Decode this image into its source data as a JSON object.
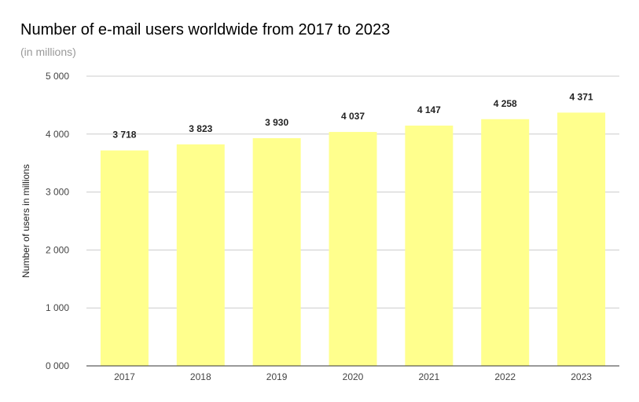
{
  "chart_data": {
    "type": "bar",
    "title": "Number of e-mail users worldwide from 2017 to 2023",
    "subtitle": "(in millions)",
    "xlabel": "",
    "ylabel": "Number of users in millions",
    "categories": [
      "2017",
      "2018",
      "2019",
      "2020",
      "2021",
      "2022",
      "2023"
    ],
    "values": [
      3718,
      3823,
      3930,
      4037,
      4147,
      4258,
      4371
    ],
    "data_labels": [
      "3 718",
      "3 823",
      "3 930",
      "4 037",
      "4 147",
      "4 258",
      "4 371"
    ],
    "ylim": [
      0,
      5000
    ],
    "yticks": [
      0,
      1000,
      2000,
      3000,
      4000,
      5000
    ],
    "ytick_labels": [
      "0 000",
      "1 000",
      "2 000",
      "3 000",
      "4 000",
      "5 000"
    ],
    "grid": true,
    "bar_color": "#ffff8d",
    "gridline_color": "#cccccc",
    "axis_color": "#333333"
  }
}
